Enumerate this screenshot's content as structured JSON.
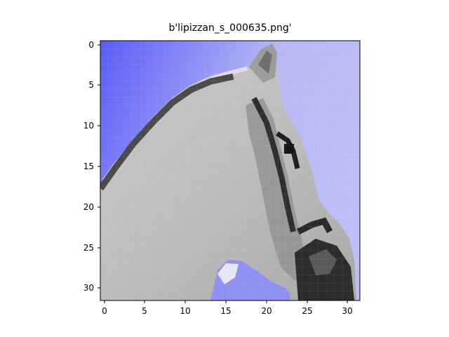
{
  "title": "b'lipizzan_s_000635.png'",
  "image": {
    "rows": 32,
    "cols": 32,
    "subject": "grayscale horse head in profile against a blue-violet background",
    "colors": {
      "background_left": "#6a6cf5",
      "background_right": "#b8b9f6",
      "horse_light": "#c6c6c6",
      "horse_mid": "#9a9a9a",
      "horse_dark": "#3a3a3a",
      "bridle_black": "#1c1c1c",
      "highlight": "#e8e8f8"
    }
  },
  "x_axis": {
    "ticks": [
      0,
      5,
      10,
      15,
      20,
      25,
      30
    ],
    "labels": [
      "0",
      "5",
      "10",
      "15",
      "20",
      "25",
      "30"
    ]
  },
  "y_axis": {
    "ticks": [
      0,
      5,
      10,
      15,
      20,
      25,
      30
    ],
    "labels": [
      "0",
      "5",
      "10",
      "15",
      "20",
      "25",
      "30"
    ]
  }
}
